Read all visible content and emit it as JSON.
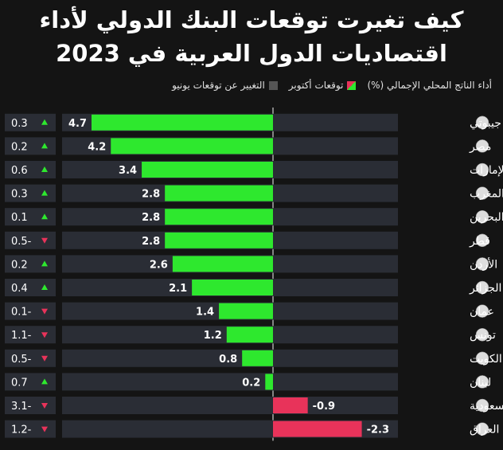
{
  "title": {
    "line1": "كيف تغيرت توقعات البنك الدولي لأداء",
    "line2": "اقتصاديات الدول العربية في 2023"
  },
  "legend": {
    "gdp_label": "أداء الناتج المحلي الإجمالي (%)",
    "october_label": "توقعات أكتوبر",
    "change_label": "التغيير عن توقعات يونيو"
  },
  "colors": {
    "positive": "#2ee82e",
    "negative": "#e8335a",
    "up_arrow": "#2ee82e",
    "down_arrow": "#e8335a",
    "row_bg": "#2a2d35"
  },
  "chart_data": {
    "type": "bar",
    "orientation": "horizontal",
    "title": "كيف تغيرت توقعات البنك الدولي لأداء اقتصاديات الدول العربية في 2023",
    "categories": [
      "جيبوتي",
      "مصر",
      "الإمارات",
      "المغرب",
      "البحرين",
      "قطر",
      "الأردن",
      "الجزائر",
      "عمان",
      "تونس",
      "الكويت",
      "لبنان",
      "السعودية",
      "العراق"
    ],
    "values": [
      4.7,
      4.2,
      3.4,
      2.8,
      2.8,
      2.8,
      2.6,
      2.1,
      1.4,
      1.2,
      0.8,
      0.2,
      -0.9,
      -2.3
    ],
    "value_labels": [
      "4.7",
      "4.2",
      "3.4",
      "2.8",
      "2.8",
      "2.8",
      "2.6",
      "2.1",
      "1.4",
      "1.2",
      "0.8",
      "0.2",
      "-0.9",
      "-2.3"
    ],
    "changes": [
      0.3,
      0.2,
      0.6,
      0.3,
      0.1,
      -0.5,
      0.2,
      0.4,
      -0.1,
      -1.1,
      -0.5,
      0.7,
      -3.1,
      -1.2
    ],
    "change_labels": [
      "0.3",
      "0.2",
      "0.6",
      "0.3",
      "0.1",
      "0.5-",
      "0.2",
      "0.4",
      "0.1-",
      "1.1-",
      "0.5-",
      "0.7",
      "3.1-",
      "1.2-"
    ],
    "series": [
      {
        "name": "توقعات أكتوبر",
        "values": [
          4.7,
          4.2,
          3.4,
          2.8,
          2.8,
          2.8,
          2.6,
          2.1,
          1.4,
          1.2,
          0.8,
          0.2,
          -0.9,
          -2.3
        ]
      },
      {
        "name": "التغيير عن توقعات يونيو",
        "values": [
          0.3,
          0.2,
          0.6,
          0.3,
          0.1,
          -0.5,
          0.2,
          0.4,
          -0.1,
          -1.1,
          -0.5,
          0.7,
          -3.1,
          -1.2
        ]
      }
    ],
    "xlim": [
      -5.1,
      4.8
    ],
    "xlabel": "",
    "ylabel": "أداء الناتج المحلي الإجمالي (%)"
  }
}
